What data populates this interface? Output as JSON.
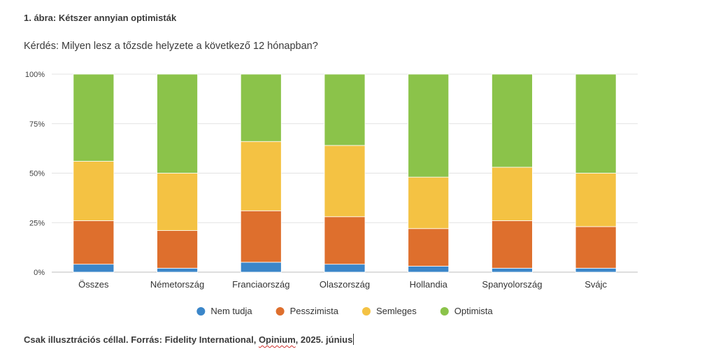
{
  "figure": {
    "title": "1. ábra: Kétszer annyian optimisták",
    "question": "Kérdés: Milyen lesz a tőzsde helyzete a következő 12 hónapban?"
  },
  "source": {
    "before": "Csak illusztrációs céllal. Forrás: Fidelity International, ",
    "misspelled": "Opinium",
    "after": ", 2025. június"
  },
  "chart_data": {
    "type": "bar",
    "stacked": true,
    "categories": [
      "Összes",
      "Németország",
      "Franciaország",
      "Olaszország",
      "Hollandia",
      "Spanyolország",
      "Svájc"
    ],
    "series": [
      {
        "name": "Nem tudja",
        "color": "#3b86c9",
        "values": [
          4,
          2,
          5,
          4,
          3,
          2,
          2
        ]
      },
      {
        "name": "Pesszimista",
        "color": "#de6f2d",
        "values": [
          22,
          19,
          26,
          24,
          19,
          24,
          21
        ]
      },
      {
        "name": "Semleges",
        "color": "#f4c243",
        "values": [
          30,
          29,
          35,
          36,
          26,
          27,
          27
        ]
      },
      {
        "name": "Optimista",
        "color": "#8bc34a",
        "values": [
          44,
          50,
          34,
          36,
          52,
          47,
          50
        ]
      }
    ],
    "yticks": [
      "0%",
      "25%",
      "50%",
      "75%",
      "100%"
    ],
    "ylim": [
      0,
      100
    ],
    "grid": true,
    "legend_position": "bottom"
  }
}
